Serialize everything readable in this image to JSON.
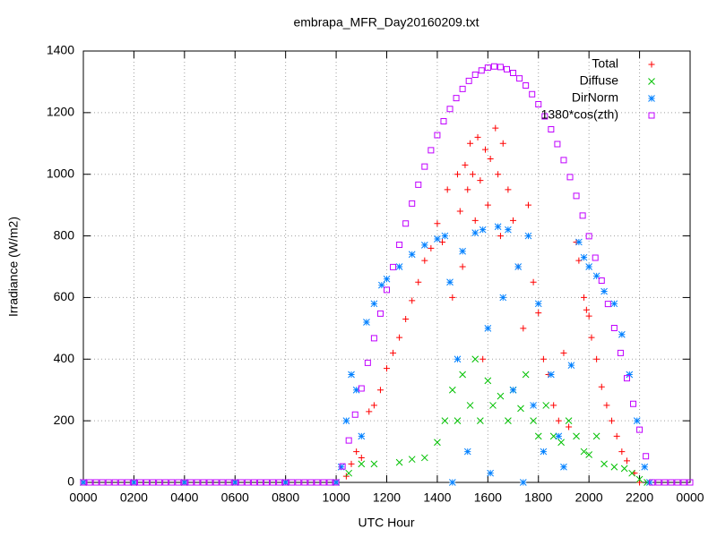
{
  "chart_data": {
    "type": "scatter",
    "title": "embrapa_MFR_Day20160209.txt",
    "x_label": "UTC Hour",
    "y_label": "Irradiance (W/m2)",
    "xlim": [
      0,
      24
    ],
    "ylim": [
      0,
      1400
    ],
    "xticks": [
      {
        "value": 0,
        "label": "0000"
      },
      {
        "value": 2,
        "label": "0200"
      },
      {
        "value": 4,
        "label": "0400"
      },
      {
        "value": 6,
        "label": "0600"
      },
      {
        "value": 8,
        "label": "0800"
      },
      {
        "value": 10,
        "label": "1000"
      },
      {
        "value": 12,
        "label": "1200"
      },
      {
        "value": 14,
        "label": "1400"
      },
      {
        "value": 16,
        "label": "1600"
      },
      {
        "value": 18,
        "label": "1800"
      },
      {
        "value": 20,
        "label": "2000"
      },
      {
        "value": 22,
        "label": "2200"
      },
      {
        "value": 24,
        "label": "0000"
      }
    ],
    "yticks": [
      0,
      200,
      400,
      600,
      800,
      1000,
      1200,
      1400
    ],
    "grid": true,
    "legend": "top-right",
    "series": [
      {
        "name": "Total",
        "color": "#ff0000",
        "marker": "plus",
        "x": [
          0,
          2,
          4,
          6,
          8,
          10,
          10.4,
          10.6,
          10.8,
          11.0,
          11.3,
          11.5,
          11.75,
          12.0,
          12.25,
          12.5,
          12.75,
          13.0,
          13.25,
          13.5,
          13.75,
          14.0,
          14.2,
          14.4,
          14.6,
          14.8,
          14.9,
          15.0,
          15.1,
          15.2,
          15.3,
          15.4,
          15.5,
          15.6,
          15.7,
          15.8,
          15.9,
          16.0,
          16.1,
          16.3,
          16.4,
          16.5,
          16.6,
          16.8,
          17.0,
          17.2,
          17.4,
          17.6,
          17.8,
          18.0,
          18.2,
          18.4,
          18.6,
          18.8,
          19.0,
          19.2,
          19.5,
          19.6,
          19.8,
          19.9,
          20.0,
          20.1,
          20.3,
          20.5,
          20.7,
          20.9,
          21.1,
          21.3,
          21.5,
          21.8,
          22.0
        ],
        "values": [
          0,
          0,
          0,
          0,
          0,
          0,
          20,
          60,
          100,
          80,
          230,
          250,
          300,
          370,
          420,
          470,
          530,
          590,
          650,
          720,
          760,
          840,
          780,
          950,
          600,
          1000,
          880,
          700,
          1030,
          950,
          1100,
          1000,
          850,
          1120,
          980,
          400,
          1080,
          900,
          1050,
          1150,
          1000,
          800,
          1100,
          950,
          850,
          700,
          500,
          900,
          650,
          550,
          400,
          350,
          250,
          200,
          420,
          180,
          780,
          720,
          600,
          560,
          540,
          470,
          400,
          310,
          250,
          200,
          150,
          100,
          70,
          30,
          0
        ]
      },
      {
        "name": "Diffuse",
        "color": "#00c000",
        "marker": "cross",
        "x": [
          0,
          2,
          4,
          6,
          8,
          10,
          10.5,
          11.0,
          11.5,
          12.5,
          13.0,
          13.5,
          14.0,
          14.3,
          14.6,
          14.8,
          15.0,
          15.3,
          15.5,
          15.7,
          16.0,
          16.2,
          16.5,
          16.8,
          17.0,
          17.3,
          17.5,
          17.8,
          18.0,
          18.3,
          18.6,
          18.9,
          19.2,
          19.5,
          19.8,
          20.0,
          20.3,
          20.6,
          21.0,
          21.4,
          21.7,
          22.0,
          22.3
        ],
        "values": [
          0,
          0,
          0,
          0,
          0,
          0,
          30,
          60,
          60,
          65,
          75,
          80,
          130,
          200,
          300,
          200,
          350,
          250,
          400,
          200,
          330,
          250,
          280,
          200,
          300,
          240,
          350,
          200,
          150,
          250,
          150,
          130,
          200,
          150,
          100,
          90,
          150,
          60,
          50,
          45,
          30,
          10,
          0
        ]
      },
      {
        "name": "DirNorm",
        "color": "#0080ff",
        "marker": "star",
        "x": [
          0,
          2,
          4,
          6,
          8,
          10,
          10.2,
          10.4,
          10.6,
          10.8,
          11.0,
          11.2,
          11.5,
          11.8,
          12.0,
          12.5,
          13.0,
          13.5,
          14.0,
          14.3,
          14.5,
          14.6,
          14.8,
          15.0,
          15.2,
          15.5,
          15.8,
          16.0,
          16.1,
          16.4,
          16.6,
          16.8,
          17.0,
          17.2,
          17.4,
          17.6,
          17.8,
          18.0,
          18.2,
          18.5,
          18.8,
          19.0,
          19.3,
          19.6,
          19.8,
          20.0,
          20.3,
          20.6,
          21.0,
          21.3,
          21.6,
          21.9,
          22.2,
          22.4
        ],
        "values": [
          0,
          0,
          0,
          0,
          0,
          0,
          50,
          200,
          350,
          300,
          150,
          520,
          580,
          640,
          660,
          700,
          740,
          770,
          790,
          800,
          650,
          0,
          400,
          750,
          100,
          810,
          820,
          500,
          30,
          830,
          600,
          820,
          300,
          700,
          0,
          800,
          250,
          580,
          100,
          350,
          150,
          50,
          380,
          780,
          730,
          700,
          670,
          620,
          580,
          480,
          350,
          200,
          50,
          0
        ]
      },
      {
        "name": "1380*cos(zth)",
        "color": "#c000ff",
        "marker": "square",
        "x": [
          0,
          0.25,
          0.5,
          0.75,
          1,
          1.25,
          1.5,
          1.75,
          2,
          2.25,
          2.5,
          2.75,
          3,
          3.25,
          3.5,
          3.75,
          4,
          4.25,
          4.5,
          4.75,
          5,
          5.25,
          5.5,
          5.75,
          6,
          6.25,
          6.5,
          6.75,
          7,
          7.25,
          7.5,
          7.75,
          8,
          8.25,
          8.5,
          8.75,
          9,
          9.25,
          9.5,
          9.75,
          10,
          10.25,
          10.5,
          10.75,
          11,
          11.25,
          11.5,
          11.75,
          12,
          12.25,
          12.5,
          12.75,
          13,
          13.25,
          13.5,
          13.75,
          14,
          14.25,
          14.5,
          14.75,
          15,
          15.25,
          15.5,
          15.75,
          16,
          16.25,
          16.5,
          16.75,
          17,
          17.25,
          17.5,
          17.75,
          18,
          18.25,
          18.5,
          18.75,
          19,
          19.25,
          19.5,
          19.75,
          20,
          20.25,
          20.5,
          20.75,
          21,
          21.25,
          21.5,
          21.75,
          22,
          22.25,
          22.5,
          22.75,
          23,
          23.25,
          23.5,
          23.75,
          24
        ],
        "values": [
          0,
          0,
          0,
          0,
          0,
          0,
          0,
          0,
          0,
          0,
          0,
          0,
          0,
          0,
          0,
          0,
          0,
          0,
          0,
          0,
          0,
          0,
          0,
          0,
          0,
          0,
          0,
          0,
          0,
          0,
          0,
          0,
          0,
          0,
          0,
          0,
          0,
          0,
          0,
          0,
          0,
          52,
          136,
          220,
          305,
          388,
          468,
          548,
          625,
          699,
          771,
          840,
          905,
          966,
          1025,
          1078,
          1127,
          1172,
          1212,
          1247,
          1277,
          1303,
          1323,
          1337,
          1346,
          1350,
          1348,
          1341,
          1329,
          1311,
          1288,
          1260,
          1227,
          1188,
          1146,
          1098,
          1046,
          991,
          930,
          866,
          799,
          729,
          655,
          579,
          501,
          420,
          338,
          255,
          171,
          85,
          0,
          0,
          0,
          0,
          0,
          0,
          0
        ]
      }
    ]
  }
}
